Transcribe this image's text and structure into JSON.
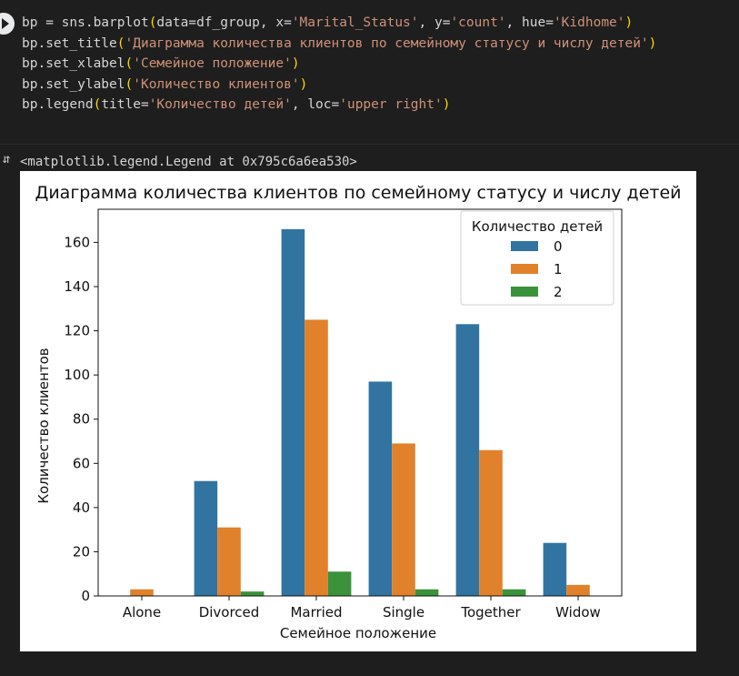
{
  "code": {
    "lines": [
      [
        {
          "t": "bp = sns.barplot",
          "c": ""
        },
        {
          "t": "(",
          "c": "paren"
        },
        {
          "t": "data=df_group, x=",
          "c": ""
        },
        {
          "t": "'Marital_Status'",
          "c": "str"
        },
        {
          "t": ", y=",
          "c": ""
        },
        {
          "t": "'count'",
          "c": "str"
        },
        {
          "t": ", hue=",
          "c": ""
        },
        {
          "t": "'Kidhome'",
          "c": "str"
        },
        {
          "t": ")",
          "c": "paren"
        }
      ],
      [
        {
          "t": "bp.set_title",
          "c": ""
        },
        {
          "t": "(",
          "c": "paren"
        },
        {
          "t": "'Диаграмма количества клиентов по семейному статусу и числу детей'",
          "c": "str"
        },
        {
          "t": ")",
          "c": "paren"
        }
      ],
      [
        {
          "t": "bp.set_xlabel",
          "c": ""
        },
        {
          "t": "(",
          "c": "paren"
        },
        {
          "t": "'Семейное положение'",
          "c": "str"
        },
        {
          "t": ")",
          "c": "paren"
        }
      ],
      [
        {
          "t": "bp.set_ylabel",
          "c": ""
        },
        {
          "t": "(",
          "c": "paren"
        },
        {
          "t": "'Количество клиентов'",
          "c": "str"
        },
        {
          "t": ")",
          "c": "paren"
        }
      ],
      [
        {
          "t": "bp.legend",
          "c": ""
        },
        {
          "t": "(",
          "c": "paren"
        },
        {
          "t": "title=",
          "c": ""
        },
        {
          "t": "'Количество детей'",
          "c": "str"
        },
        {
          "t": ", loc=",
          "c": ""
        },
        {
          "t": "'upper right'",
          "c": "str"
        },
        {
          "t": ")",
          "c": "paren"
        }
      ]
    ]
  },
  "output": {
    "text": "<matplotlib.legend.Legend at 0x795c6a6ea530>"
  },
  "icons": {
    "run": "play-icon",
    "output": "output-toggle-icon"
  },
  "chart_data": {
    "type": "bar",
    "title": "Диаграмма количества клиентов по семейному статусу и числу детей",
    "xlabel": "Семейное положение",
    "ylabel": "Количество клиентов",
    "categories": [
      "Alone",
      "Divorced",
      "Married",
      "Single",
      "Together",
      "Widow"
    ],
    "series": [
      {
        "name": "0",
        "color": "#3274a1",
        "values": [
          null,
          52,
          166,
          97,
          123,
          24
        ]
      },
      {
        "name": "1",
        "color": "#e1812c",
        "values": [
          3,
          31,
          125,
          69,
          66,
          5
        ]
      },
      {
        "name": "2",
        "color": "#3a923a",
        "values": [
          null,
          2,
          11,
          3,
          3,
          null
        ]
      }
    ],
    "ylim": [
      0,
      175
    ],
    "yticks": [
      0,
      20,
      40,
      60,
      80,
      100,
      120,
      140,
      160
    ],
    "legend": {
      "title": "Количество детей",
      "position": "upper right"
    },
    "grid": false
  }
}
